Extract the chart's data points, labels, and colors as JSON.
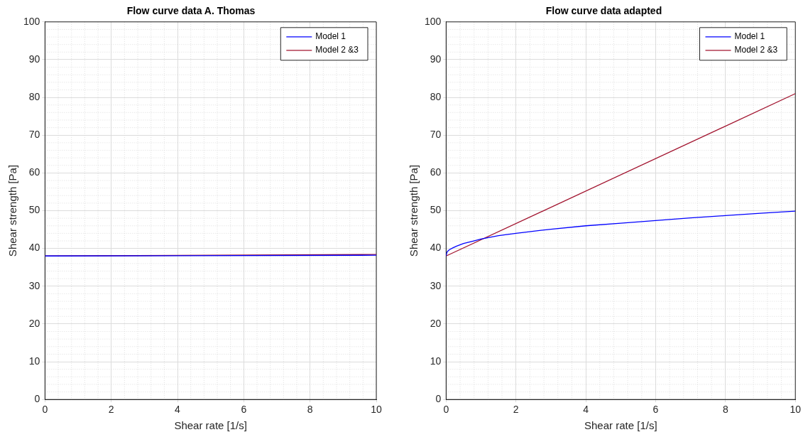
{
  "chart_data": [
    {
      "type": "line",
      "title": "Flow curve data A. Thomas",
      "xlabel": "Shear rate [1/s]",
      "ylabel": "Shear strength [Pa]",
      "x": [
        0,
        10
      ],
      "xlim": [
        0,
        10
      ],
      "ylim": [
        0,
        100
      ],
      "xticks": [
        0,
        2,
        4,
        6,
        8,
        10
      ],
      "yticks": [
        0,
        10,
        20,
        30,
        40,
        50,
        60,
        70,
        80,
        90,
        100
      ],
      "grid": true,
      "legend": "top right",
      "series": [
        {
          "name": "Model 1",
          "color": "#0000ff",
          "values": [
            38,
            38.2
          ]
        },
        {
          "name": "Model 2 &3",
          "color": "#a2142f",
          "values": [
            38,
            38.4
          ]
        }
      ]
    },
    {
      "type": "line",
      "title": "Flow curve data adapted",
      "xlabel": "Shear rate [1/s]",
      "ylabel": "Shear strength [Pa]",
      "xlim": [
        0,
        10
      ],
      "ylim": [
        0,
        100
      ],
      "xticks": [
        0,
        2,
        4,
        6,
        8,
        10
      ],
      "yticks": [
        0,
        10,
        20,
        30,
        40,
        50,
        60,
        70,
        80,
        90,
        100
      ],
      "grid": true,
      "legend": "top right",
      "series": [
        {
          "name": "Model 1",
          "color": "#0000ff",
          "x": [
            0,
            0.02,
            0.05,
            0.1,
            0.2,
            0.3,
            0.5,
            0.75,
            1,
            1.5,
            2,
            3,
            4,
            5,
            6,
            7,
            8,
            9,
            10
          ],
          "values": [
            38,
            38.9,
            39.3,
            39.7,
            40.2,
            40.6,
            41.3,
            41.9,
            42.5,
            43.4,
            44,
            45.1,
            46,
            46.7,
            47.4,
            48.1,
            48.7,
            49.3,
            49.9
          ]
        },
        {
          "name": "Model 2 &3",
          "color": "#a2142f",
          "x": [
            0,
            10
          ],
          "values": [
            38,
            81
          ]
        }
      ]
    }
  ]
}
